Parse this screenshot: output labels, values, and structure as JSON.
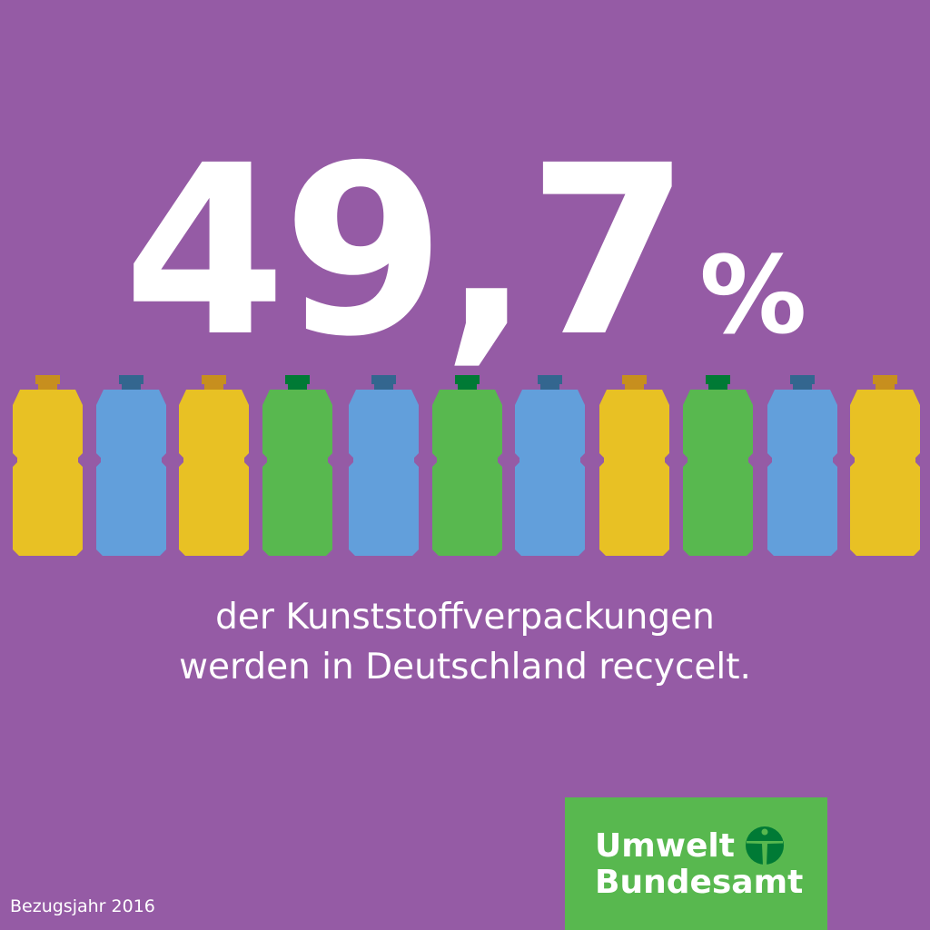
{
  "headline": {
    "number": "49,7",
    "unit": "%"
  },
  "bottles": [
    {
      "body": "#e8c124",
      "cap": "#c78f1e"
    },
    {
      "body": "#629fdb",
      "cap": "#33668f"
    },
    {
      "body": "#e8c124",
      "cap": "#c78f1e"
    },
    {
      "body": "#58b84f",
      "cap": "#007a35"
    },
    {
      "body": "#629fdb",
      "cap": "#33668f"
    },
    {
      "body": "#58b84f",
      "cap": "#007a35"
    },
    {
      "body": "#629fdb",
      "cap": "#33668f"
    },
    {
      "body": "#e8c124",
      "cap": "#c78f1e"
    },
    {
      "body": "#58b84f",
      "cap": "#007a35"
    },
    {
      "body": "#629fdb",
      "cap": "#33668f"
    },
    {
      "body": "#e8c124",
      "cap": "#c78f1e"
    }
  ],
  "caption": {
    "line1": "der Kunststoffverpackungen",
    "line2": "werden in Deutschland recycelt."
  },
  "logo": {
    "line1": "Umwelt",
    "line2": "Bundesamt"
  },
  "footer": {
    "reference_year": "Bezugsjahr 2016"
  },
  "colors": {
    "background": "#955ba5",
    "logo_green": "#58b84f",
    "logo_dark_green": "#007a35"
  }
}
